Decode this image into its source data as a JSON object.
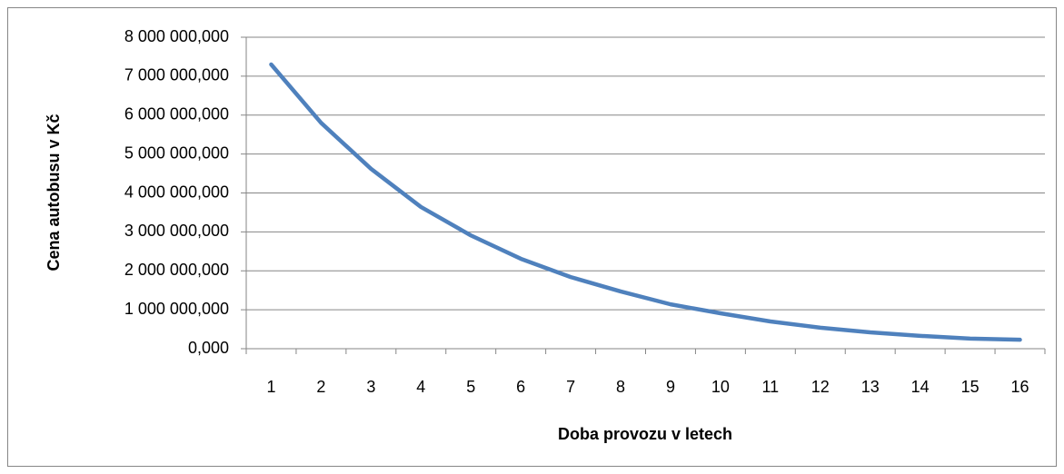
{
  "chart_data": {
    "type": "line",
    "x_label": "Doba provozu v letech",
    "y_label": "Cena autobusu v Kč",
    "categories": [
      1,
      2,
      3,
      4,
      5,
      6,
      7,
      8,
      9,
      10,
      11,
      12,
      13,
      14,
      15,
      16
    ],
    "series": [
      {
        "name": null,
        "color": "#4f81bd",
        "values": [
          7300000,
          5800000,
          4620000,
          3640000,
          2910000,
          2310000,
          1840000,
          1470000,
          1140000,
          910000,
          700000,
          540000,
          420000,
          330000,
          260000,
          230000
        ]
      }
    ],
    "ylim": [
      0,
      8000000
    ],
    "yticks": [
      {
        "value": 0,
        "label": "0,000"
      },
      {
        "value": 1000000,
        "label": "1 000 000,000"
      },
      {
        "value": 2000000,
        "label": "2 000 000,000"
      },
      {
        "value": 3000000,
        "label": "3 000 000,000"
      },
      {
        "value": 4000000,
        "label": "4 000 000,000"
      },
      {
        "value": 5000000,
        "label": "5 000 000,000"
      },
      {
        "value": 6000000,
        "label": "6 000 000,000"
      },
      {
        "value": 7000000,
        "label": "7 000 000,000"
      },
      {
        "value": 8000000,
        "label": "8 000 000,000"
      }
    ],
    "grid": true
  }
}
